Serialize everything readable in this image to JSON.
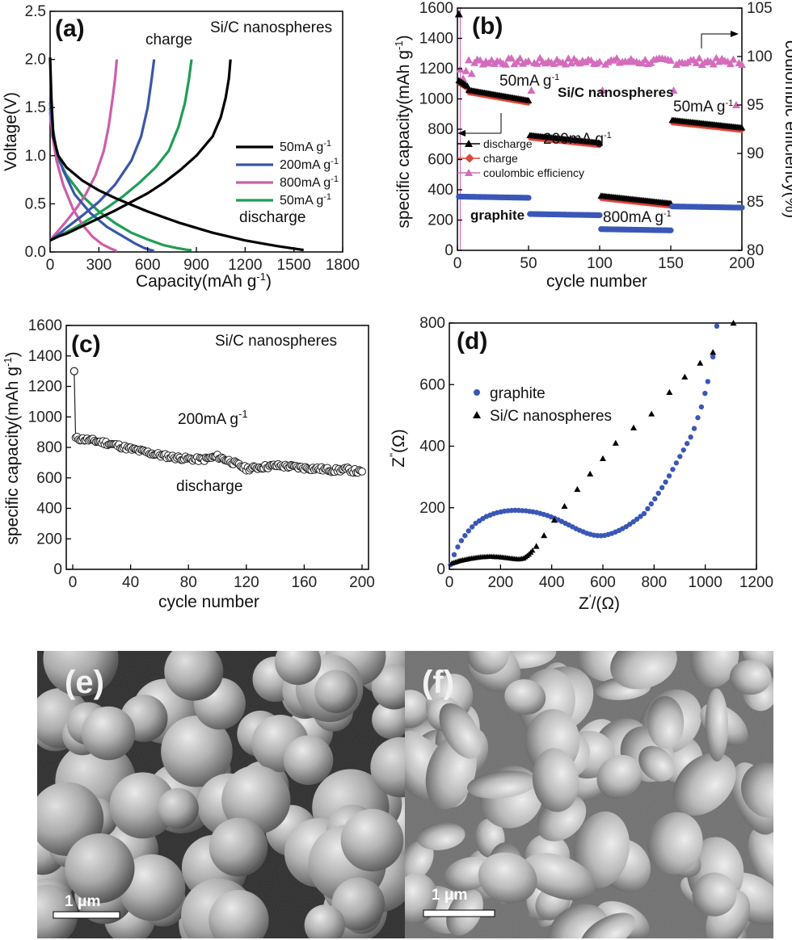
{
  "chart_data": [
    {
      "id": "a",
      "panel_label": "(a)",
      "type": "line",
      "title": "Si/C nanospheres",
      "xlabel": "Capacity(mAh g",
      "xlabel_sup": "-1",
      "xlabel_end": ")",
      "ylabel": "Voltage(V)",
      "xlim": [
        0,
        1800
      ],
      "ylim": [
        0,
        2.5
      ],
      "xticks": [
        "0",
        "300",
        "600",
        "900",
        "1200",
        "1500",
        "1800"
      ],
      "yticks": [
        "0.0",
        "0.5",
        "1.0",
        "1.5",
        "2.0",
        "2.5"
      ],
      "annotations": [
        "charge",
        "discharge"
      ],
      "legend_position": "right",
      "series": [
        {
          "name": "50mA g",
          "name_sup": "-1",
          "color": "#000000",
          "discharge": [
            [
              0,
              2.02
            ],
            [
              8,
              1.6
            ],
            [
              20,
              1.2
            ],
            [
              50,
              1.0
            ],
            [
              100,
              0.88
            ],
            [
              200,
              0.74
            ],
            [
              300,
              0.64
            ],
            [
              400,
              0.56
            ],
            [
              500,
              0.49
            ],
            [
              600,
              0.42
            ],
            [
              700,
              0.36
            ],
            [
              800,
              0.3
            ],
            [
              900,
              0.25
            ],
            [
              1000,
              0.2
            ],
            [
              1100,
              0.16
            ],
            [
              1200,
              0.12
            ],
            [
              1300,
              0.09
            ],
            [
              1400,
              0.06
            ],
            [
              1500,
              0.035
            ],
            [
              1560,
              0.02
            ]
          ],
          "charge": [
            [
              0,
              0.12
            ],
            [
              50,
              0.16
            ],
            [
              100,
              0.19
            ],
            [
              200,
              0.27
            ],
            [
              300,
              0.35
            ],
            [
              400,
              0.43
            ],
            [
              500,
              0.52
            ],
            [
              600,
              0.61
            ],
            [
              700,
              0.72
            ],
            [
              800,
              0.85
            ],
            [
              900,
              1.0
            ],
            [
              1000,
              1.2
            ],
            [
              1050,
              1.4
            ],
            [
              1080,
              1.6
            ],
            [
              1100,
              1.8
            ],
            [
              1110,
              2.0
            ]
          ]
        },
        {
          "name": "200mA g",
          "name_sup": "-1",
          "color": "#3a57a8",
          "discharge": [
            [
              0,
              1.55
            ],
            [
              15,
              1.3
            ],
            [
              40,
              1.05
            ],
            [
              80,
              0.85
            ],
            [
              150,
              0.6
            ],
            [
              250,
              0.4
            ],
            [
              350,
              0.26
            ],
            [
              450,
              0.16
            ],
            [
              520,
              0.09
            ],
            [
              580,
              0.04
            ],
            [
              620,
              0.02
            ],
            [
              640,
              0.01
            ]
          ],
          "charge": [
            [
              0,
              0.12
            ],
            [
              50,
              0.18
            ],
            [
              100,
              0.25
            ],
            [
              200,
              0.38
            ],
            [
              300,
              0.52
            ],
            [
              400,
              0.7
            ],
            [
              500,
              0.95
            ],
            [
              560,
              1.2
            ],
            [
              600,
              1.5
            ],
            [
              625,
              1.8
            ],
            [
              640,
              2.0
            ]
          ]
        },
        {
          "name": "800mA g",
          "name_sup": "-1",
          "color": "#cc5fa8",
          "discharge": [
            [
              0,
              1.45
            ],
            [
              15,
              1.2
            ],
            [
              40,
              0.95
            ],
            [
              80,
              0.7
            ],
            [
              140,
              0.45
            ],
            [
              200,
              0.28
            ],
            [
              260,
              0.16
            ],
            [
              320,
              0.08
            ],
            [
              380,
              0.03
            ],
            [
              410,
              0.01
            ]
          ],
          "charge": [
            [
              0,
              0.12
            ],
            [
              40,
              0.2
            ],
            [
              100,
              0.32
            ],
            [
              160,
              0.45
            ],
            [
              220,
              0.6
            ],
            [
              280,
              0.8
            ],
            [
              330,
              1.05
            ],
            [
              360,
              1.3
            ],
            [
              385,
              1.6
            ],
            [
              400,
              1.8
            ],
            [
              410,
              2.0
            ]
          ]
        },
        {
          "name": "50mA g",
          "name_sup": "-1",
          "color": "#1f9e55",
          "discharge": [
            [
              0,
              1.5
            ],
            [
              15,
              1.2
            ],
            [
              40,
              1.0
            ],
            [
              100,
              0.8
            ],
            [
              200,
              0.58
            ],
            [
              300,
              0.42
            ],
            [
              400,
              0.3
            ],
            [
              500,
              0.2
            ],
            [
              600,
              0.13
            ],
            [
              700,
              0.07
            ],
            [
              780,
              0.04
            ],
            [
              850,
              0.02
            ],
            [
              870,
              0.02
            ]
          ],
          "charge": [
            [
              0,
              0.12
            ],
            [
              60,
              0.17
            ],
            [
              150,
              0.25
            ],
            [
              250,
              0.35
            ],
            [
              350,
              0.46
            ],
            [
              450,
              0.58
            ],
            [
              550,
              0.72
            ],
            [
              650,
              0.88
            ],
            [
              730,
              1.05
            ],
            [
              790,
              1.3
            ],
            [
              830,
              1.55
            ],
            [
              855,
              1.8
            ],
            [
              870,
              2.0
            ]
          ]
        }
      ]
    },
    {
      "id": "b",
      "panel_label": "(b)",
      "type": "scatter",
      "title": "Si/C nanospheres",
      "xlabel": "cycle number",
      "ylabel": "specific capacity(mAh g",
      "ylabel_sup": "-1",
      "ylabel_end": ")",
      "ylabel2": "coulombic efficiency(%)",
      "xlim": [
        0,
        200
      ],
      "ylim": [
        0,
        1600
      ],
      "y2lim": [
        80,
        105
      ],
      "xticks": [
        "0",
        "50",
        "100",
        "150",
        "200"
      ],
      "yticks": [
        "0",
        "200",
        "400",
        "600",
        "800",
        "1000",
        "1200",
        "1400",
        "1600"
      ],
      "y2ticks": [
        "80",
        "85",
        "90",
        "95",
        "100",
        "105"
      ],
      "rate_labels": [
        {
          "text": "50mA g",
          "sup": "-1"
        },
        {
          "text": "200mA g",
          "sup": "-1"
        },
        {
          "text": "800mA g",
          "sup": "-1"
        },
        {
          "text": "50mA g",
          "sup": "-1"
        }
      ],
      "graphite_label": "graphite",
      "legend_position": "center-left",
      "segments": [
        {
          "from": 1,
          "to": 50,
          "sic": 1010,
          "graphite": 355
        },
        {
          "from": 51,
          "to": 100,
          "sic": 730,
          "graphite": 240
        },
        {
          "from": 101,
          "to": 150,
          "sic": 330,
          "graphite": 140
        },
        {
          "from": 151,
          "to": 200,
          "sic": 830,
          "graphite": 290
        }
      ],
      "first_cycle_discharge": 1560,
      "coulombic_efficiency_level": 99.5,
      "series": [
        {
          "name": "discharge",
          "color": "#000000",
          "marker": "triangle"
        },
        {
          "name": "charge",
          "color": "#e0443a",
          "marker": "diamond"
        },
        {
          "name": "coulombic efficiency",
          "color": "#d46cbd",
          "marker": "triangle"
        },
        {
          "name": "graphite",
          "color": "#3a57b8",
          "marker": "circle"
        }
      ]
    },
    {
      "id": "c",
      "panel_label": "(c)",
      "type": "scatter",
      "title": "Si/C nanospheres",
      "xlabel": "cycle number",
      "ylabel": "specific capacity(mAh g",
      "ylabel_sup": "-1",
      "ylabel_end": ")",
      "xlim": [
        0,
        200
      ],
      "ylim": [
        0,
        1600
      ],
      "xticks": [
        "0",
        "40",
        "80",
        "120",
        "160",
        "200"
      ],
      "yticks": [
        "0",
        "200",
        "400",
        "600",
        "800",
        "1000",
        "1200",
        "1400",
        "1600"
      ],
      "annotations": [
        {
          "text": "200mA g",
          "sup": "-1"
        },
        {
          "text": "discharge"
        }
      ],
      "first_cycle": 1300,
      "series": [
        {
          "name": "discharge",
          "color": "#222222",
          "marker": "open-circle",
          "points": [
            [
              1,
              1300
            ],
            [
              2,
              860
            ],
            [
              10,
              850
            ],
            [
              20,
              835
            ],
            [
              30,
              815
            ],
            [
              40,
              790
            ],
            [
              50,
              770
            ],
            [
              60,
              750
            ],
            [
              70,
              735
            ],
            [
              80,
              725
            ],
            [
              90,
              720
            ],
            [
              100,
              740
            ],
            [
              110,
              705
            ],
            [
              120,
              660
            ],
            [
              130,
              670
            ],
            [
              140,
              680
            ],
            [
              150,
              675
            ],
            [
              160,
              665
            ],
            [
              170,
              660
            ],
            [
              180,
              650
            ],
            [
              190,
              655
            ],
            [
              200,
              635
            ]
          ]
        }
      ]
    },
    {
      "id": "d",
      "panel_label": "(d)",
      "type": "scatter",
      "xlabel": "Z",
      "xlabel_sup": "'",
      "xlabel_end": "/(Ω)",
      "ylabel": "Z",
      "ylabel_sup": "\"",
      "ylabel_end": "(Ω)",
      "xlim": [
        0,
        1200
      ],
      "ylim": [
        0,
        800
      ],
      "xticks": [
        "0",
        "200",
        "400",
        "600",
        "800",
        "1000",
        "1200"
      ],
      "yticks": [
        "0",
        "200",
        "400",
        "600",
        "800"
      ],
      "legend_position": "upper-left",
      "series": [
        {
          "name": "graphite",
          "color": "#3a57b8",
          "marker": "circle",
          "points": [
            [
              5,
              15
            ],
            [
              20,
              50
            ],
            [
              40,
              85
            ],
            [
              70,
              120
            ],
            [
              100,
              148
            ],
            [
              140,
              170
            ],
            [
              180,
              183
            ],
            [
              220,
              190
            ],
            [
              260,
              192
            ],
            [
              300,
              190
            ],
            [
              340,
              185
            ],
            [
              380,
              176
            ],
            [
              420,
              163
            ],
            [
              460,
              147
            ],
            [
              500,
              130
            ],
            [
              540,
              116
            ],
            [
              570,
              110
            ],
            [
              600,
              109
            ],
            [
              630,
              115
            ],
            [
              660,
              125
            ],
            [
              690,
              138
            ],
            [
              720,
              155
            ],
            [
              760,
              180
            ],
            [
              800,
              225
            ],
            [
              850,
              290
            ],
            [
              900,
              365
            ],
            [
              950,
              440
            ],
            [
              990,
              540
            ],
            [
              1010,
              610
            ],
            [
              1030,
              690
            ],
            [
              1045,
              790
            ]
          ]
        },
        {
          "name": "Si/C nanospheres",
          "color": "#000000",
          "marker": "triangle",
          "points": [
            [
              10,
              20
            ],
            [
              40,
              28
            ],
            [
              80,
              35
            ],
            [
              120,
              40
            ],
            [
              160,
              42
            ],
            [
              200,
              40
            ],
            [
              240,
              36
            ],
            [
              270,
              33
            ],
            [
              290,
              36
            ],
            [
              310,
              48
            ],
            [
              340,
              75
            ],
            [
              370,
              110
            ],
            [
              410,
              160
            ],
            [
              450,
              205
            ],
            [
              500,
              260
            ],
            [
              550,
              310
            ],
            [
              600,
              360
            ],
            [
              650,
              410
            ],
            [
              720,
              460
            ],
            [
              790,
              505
            ],
            [
              860,
              575
            ],
            [
              920,
              625
            ],
            [
              980,
              670
            ],
            [
              1030,
              705
            ],
            [
              1110,
              800
            ]
          ]
        }
      ]
    }
  ],
  "sem_images": [
    {
      "id": "e",
      "label": "(e)",
      "scale_bar": "1 μm"
    },
    {
      "id": "f",
      "label": "(f)",
      "scale_bar": "1 μm"
    }
  ]
}
